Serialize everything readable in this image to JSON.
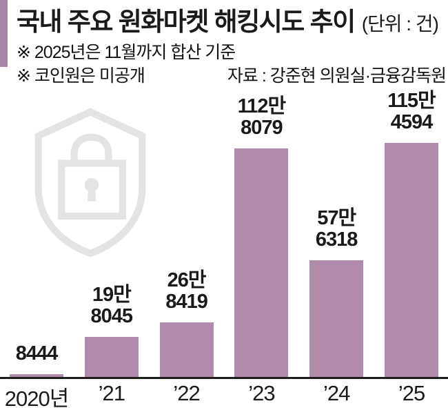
{
  "header": {
    "title": "국내 주요 원화마켓 해킹시도 추이",
    "unit_label": "(단위 : 건)"
  },
  "notes": {
    "note_2025": "※ 2025년은 11월까지 합산 기준",
    "note_coinone": "※ 코인원은 미공개",
    "source": "자료 : 강준현 의원실·금융감독원"
  },
  "chart_data": {
    "type": "bar",
    "title": "국내 주요 원화마켓 해킹시도 추이",
    "unit": "건",
    "categories": [
      "2020년",
      "’21",
      "’22",
      "’23",
      "’24",
      "’25"
    ],
    "values": [
      8444,
      198045,
      268419,
      1128079,
      576318,
      1154594
    ],
    "value_labels": [
      [
        "8444"
      ],
      [
        "19만",
        "8045"
      ],
      [
        "26만",
        "8419"
      ],
      [
        "112만",
        "8079"
      ],
      [
        "57만",
        "6318"
      ],
      [
        "115만",
        "4594"
      ]
    ],
    "ylim": [
      0,
      1200000
    ],
    "xlabel": "",
    "ylabel": "",
    "grid": false,
    "legend": "none",
    "bar_color": "#b08bac"
  },
  "colors": {
    "bar": "#b08bac",
    "accent_bar": "#a987a8",
    "watermark": "#e4e4e4",
    "axis": "#1d1d1b",
    "text": "#1a1a1a"
  },
  "icons": {
    "watermark_icon": "shield-lock-icon"
  }
}
